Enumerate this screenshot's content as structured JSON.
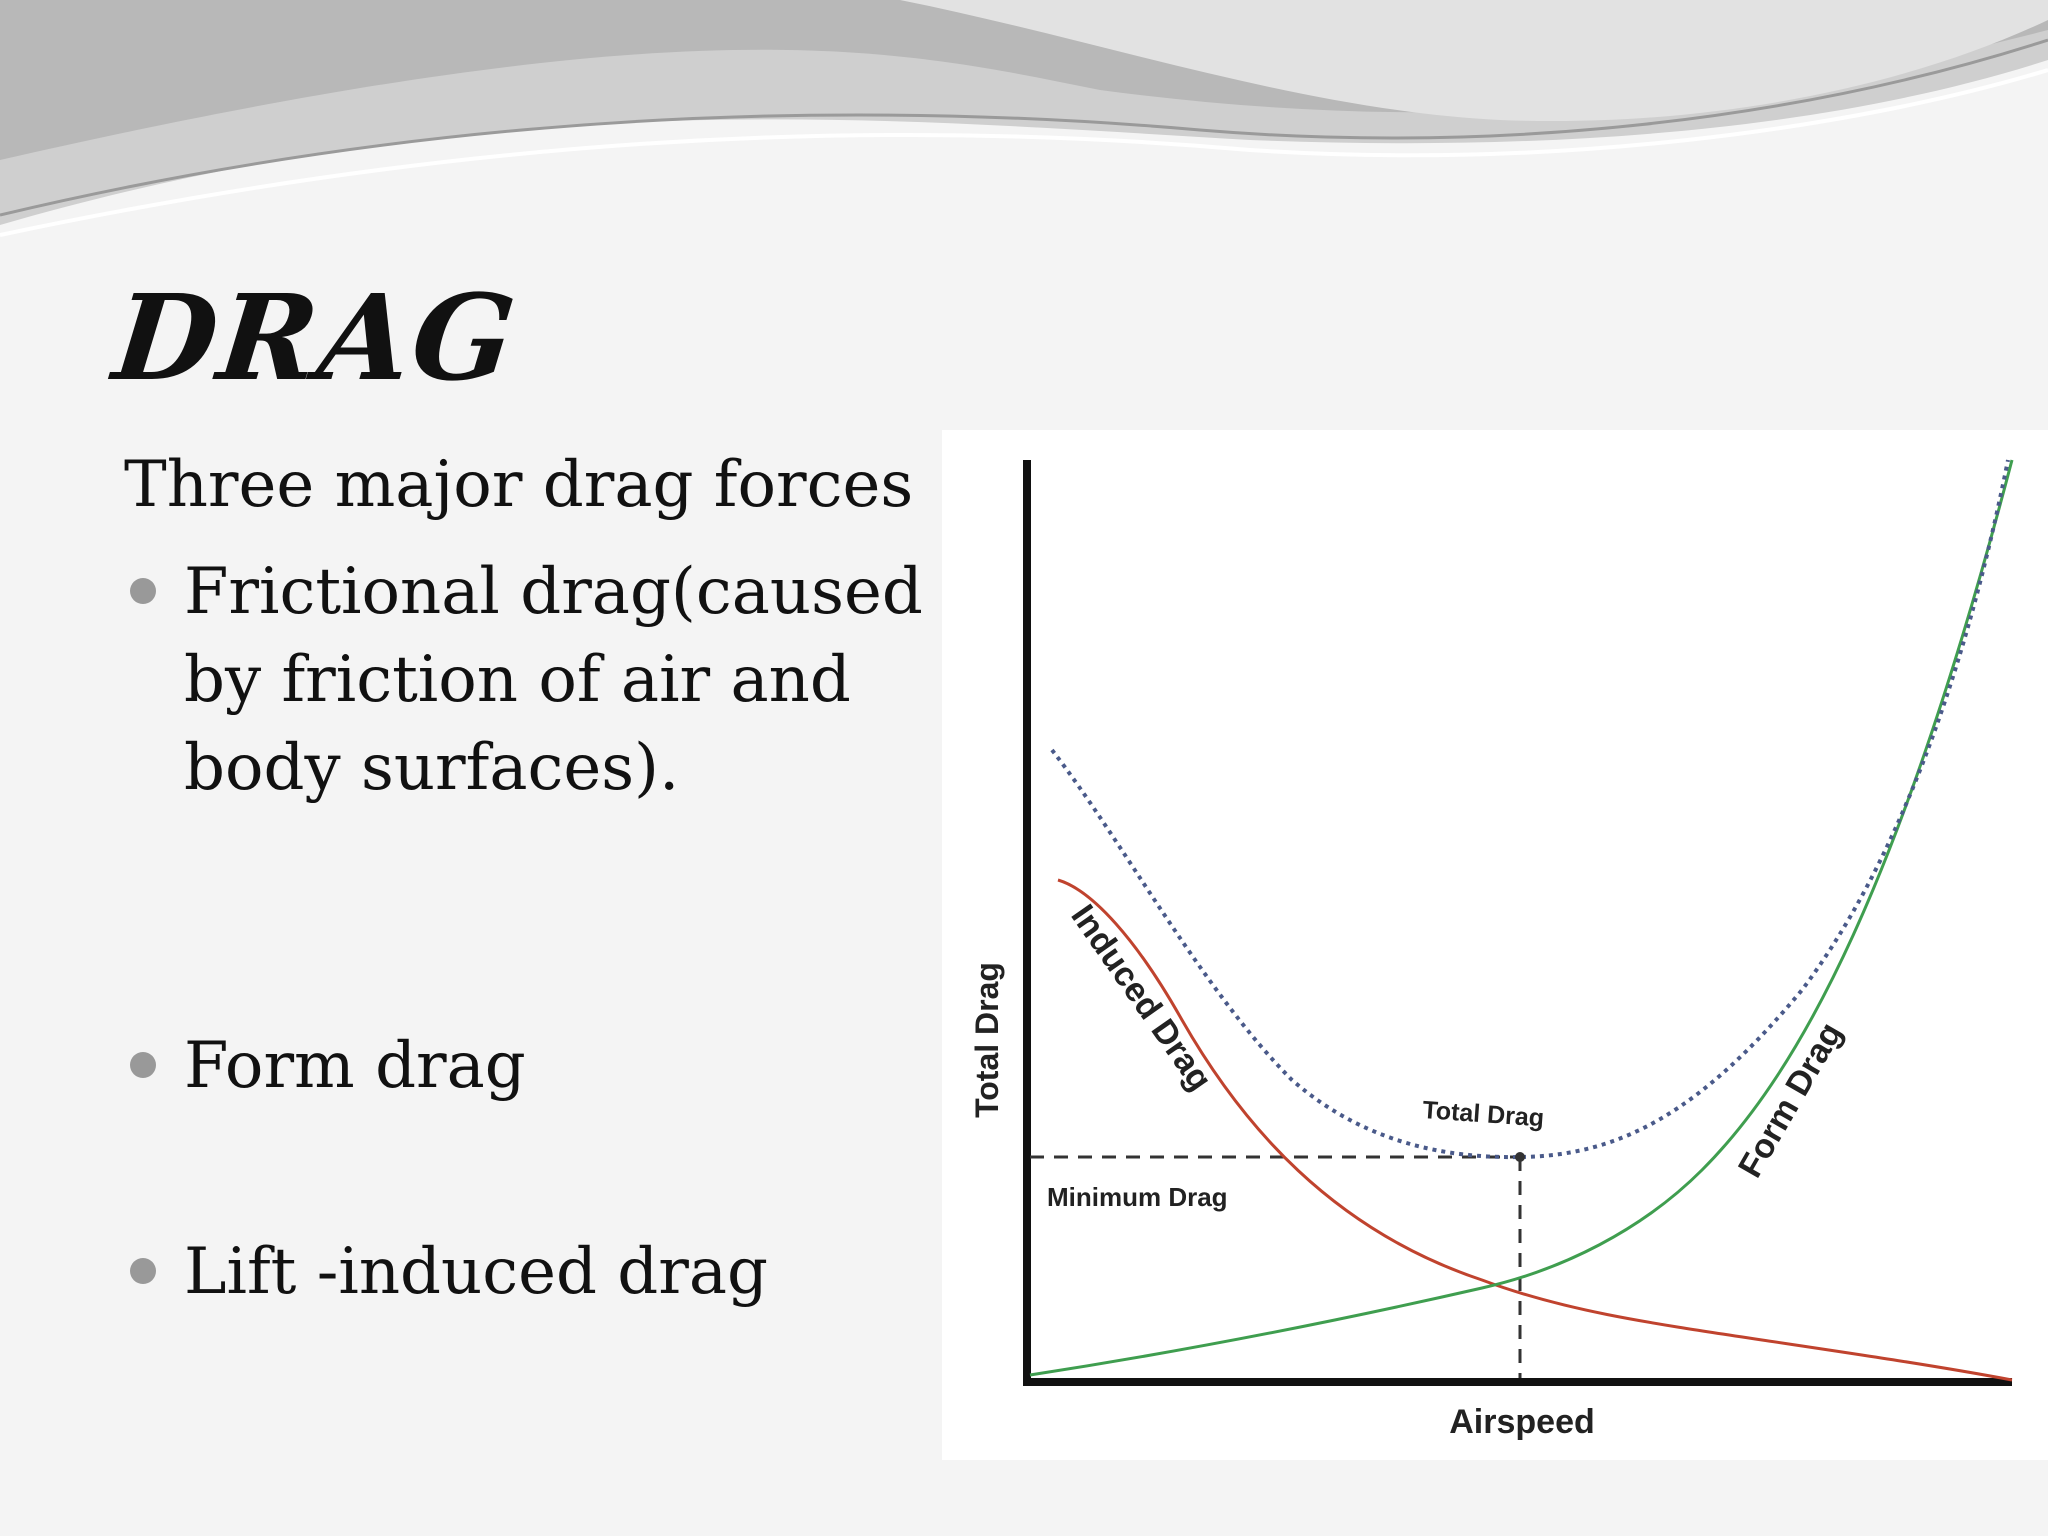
{
  "slide": {
    "title": "DRAG",
    "intro": "Three major drag forces",
    "bullets": [
      {
        "label": " Frictional drag(caused by friction of air and body surfaces)."
      },
      {
        "label": "Form drag"
      },
      {
        "label": "Lift -induced drag"
      }
    ]
  },
  "diagram": {
    "y_axis_label": "Total Drag",
    "x_axis_label": "Airspeed",
    "curves": {
      "induced": "Induced Drag",
      "form": "Form Drag",
      "total": "Total Drag"
    },
    "minimum_label": "Minimum Drag",
    "colors": {
      "induced": "#c0432e",
      "form": "#3f9e4f",
      "total": "#4a5a8a",
      "axis": "#111111"
    }
  }
}
